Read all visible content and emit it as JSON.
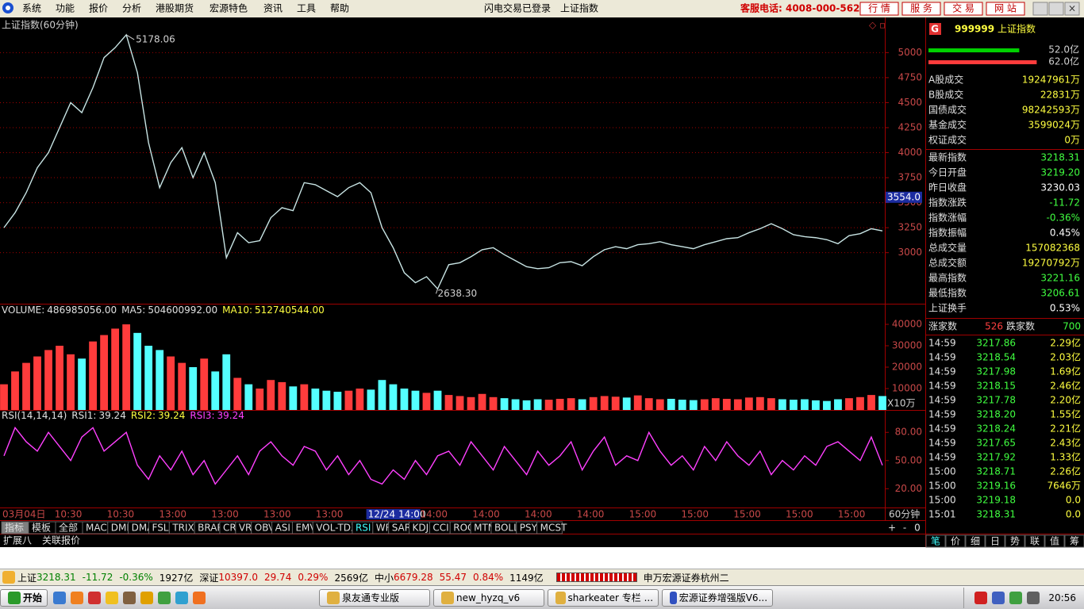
{
  "menu": [
    "系统",
    "功能",
    "报价",
    "分析",
    "港股期货",
    "宏源特色",
    "资讯",
    "工具",
    "帮助"
  ],
  "login_status": "闪电交易已登录",
  "current_name": "上证指数",
  "hotline": "客服电话: 4008-000-562",
  "top_buttons": [
    "行 情",
    "服 务",
    "交 易",
    "网 站"
  ],
  "chart_data": [
    {
      "type": "line",
      "title": "上证指数(60分钟)",
      "color": "#c8e4e4",
      "grid": true,
      "values": [
        3250,
        3400,
        3600,
        3850,
        4000,
        4250,
        4500,
        4400,
        4650,
        4950,
        5050,
        5178.06,
        4800,
        4100,
        3650,
        3900,
        4050,
        3750,
        4000,
        3700,
        2950,
        3200,
        3100,
        3120,
        3350,
        3450,
        3420,
        3700,
        3680,
        3620,
        3560,
        3650,
        3700,
        3600,
        3250,
        3050,
        2800,
        2700,
        2760,
        2638.3,
        2880,
        2900,
        2960,
        3030,
        3050,
        2980,
        2920,
        2860,
        2840,
        2850,
        2900,
        2910,
        2870,
        2960,
        3030,
        3060,
        3040,
        3080,
        3090,
        3110,
        3080,
        3060,
        3040,
        3080,
        3110,
        3140,
        3150,
        3200,
        3240,
        3290,
        3240,
        3180,
        3160,
        3150,
        3130,
        3090,
        3170,
        3190,
        3240,
        3218
      ],
      "ylim": [
        2490,
        5320
      ],
      "yticks": [
        3000,
        3250,
        3500,
        3750,
        4000,
        4250,
        4500,
        4750,
        5000
      ],
      "annotations": [
        "5178.06",
        "2638.30"
      ],
      "cursor_tick": {
        "value": 3554,
        "label": "3554.0"
      }
    },
    {
      "type": "bar",
      "up_color": "#ff3c3c",
      "down_color": "#54ffff",
      "grid": false,
      "legend": [
        {
          "name": "VOLUME:",
          "value": "486985056.00",
          "color": "#e0e0e0"
        },
        {
          "name": "MA5:",
          "value": "504600992.00",
          "color": "#e0e0e0"
        },
        {
          "name": "MA10:",
          "value": "512740544.00",
          "color": "#ffff40"
        }
      ],
      "values": [
        12000,
        18000,
        22000,
        25000,
        28000,
        30000,
        26000,
        24000,
        32000,
        35000,
        38000,
        40000,
        36000,
        30000,
        28000,
        25000,
        22000,
        20000,
        24000,
        18000,
        26000,
        15000,
        12000,
        10000,
        14000,
        13000,
        11000,
        12000,
        10000,
        9000,
        8500,
        9000,
        10000,
        9500,
        14000,
        12000,
        10000,
        9000,
        8000,
        9000,
        7000,
        6500,
        6000,
        7500,
        6000,
        5500,
        5000,
        4500,
        5000,
        4800,
        5200,
        5500,
        5000,
        6000,
        6500,
        6200,
        5800,
        6800,
        5500,
        5000,
        5200,
        4800,
        4600,
        5000,
        5500,
        5200,
        5000,
        5800,
        6000,
        5500,
        5000,
        4800,
        5000,
        4500,
        4200,
        5000,
        5500,
        6000,
        7000,
        6500
      ],
      "ylim": [
        0,
        48900
      ],
      "yticks": [
        10000,
        20000,
        30000,
        40000
      ],
      "unit": "X10万"
    },
    {
      "type": "line",
      "color": "#ff40ff",
      "grid": false,
      "legend": [
        {
          "name": "RSI(14,14,14)",
          "color": "#e0e0e0"
        },
        {
          "name": "RSI1:",
          "value": 39.24,
          "color": "#e0e0e0"
        },
        {
          "name": "RSI2:",
          "value": 39.24,
          "color": "#ffff40"
        },
        {
          "name": "RSI3:",
          "value": 39.24,
          "color": "#ff40ff"
        }
      ],
      "values": [
        55,
        85,
        70,
        60,
        80,
        65,
        50,
        75,
        85,
        60,
        70,
        80,
        45,
        30,
        55,
        40,
        60,
        35,
        50,
        25,
        40,
        55,
        35,
        60,
        70,
        55,
        45,
        65,
        60,
        40,
        55,
        35,
        50,
        30,
        25,
        40,
        30,
        50,
        35,
        55,
        60,
        45,
        70,
        55,
        40,
        65,
        50,
        35,
        60,
        45,
        55,
        70,
        40,
        60,
        75,
        45,
        55,
        50,
        80,
        60,
        45,
        55,
        40,
        65,
        50,
        70,
        55,
        45,
        60,
        35,
        50,
        40,
        55,
        45,
        65,
        70,
        60,
        50,
        75,
        45
      ],
      "ylim": [
        0,
        103
      ],
      "yticks": [
        {
          "value": 20,
          "label": "20.00"
        },
        {
          "value": 50,
          "label": "50.00"
        },
        {
          "value": 80,
          "label": "80.00"
        }
      ]
    }
  ],
  "x_labels": [
    "03月04日",
    "10:30",
    "10:30",
    "13:00",
    "13:00",
    "13:00",
    "13:00",
    "12/24 14:00",
    "14:00",
    "14:00",
    "14:00",
    "14:00",
    "15:00",
    "15:00",
    "15:00",
    "15:00",
    "15:00"
  ],
  "period": "60分钟",
  "indicator_tabs": [
    "指标",
    "模板",
    "全部",
    "MACD",
    "DMI",
    "DMA",
    "FSL",
    "TRIX",
    "BRAR",
    "CR",
    "VR",
    "OBV",
    "ASI",
    "EMV",
    "VOL-TDX",
    "RSI",
    "WR",
    "SAR",
    "KDJ",
    "CCI",
    "ROC",
    "MTM",
    "BOLL",
    "PSY",
    "MCST"
  ],
  "zoom_buttons": [
    "+",
    "-",
    "0"
  ],
  "extra_tabs": [
    "扩展八",
    "关联报价"
  ],
  "quote_panel": {
    "badge": "G",
    "code": "999999",
    "name": "上证指数",
    "flows": [
      {
        "value": 52,
        "label": "52.0亿",
        "color": "#00d000"
      },
      {
        "value": 62,
        "label": "62.0亿",
        "color": "#ff3c3c"
      }
    ],
    "turnover": [
      [
        "A股成交",
        "19247961万"
      ],
      [
        "B股成交",
        "22831万"
      ],
      [
        "国债成交",
        "98242593万"
      ],
      [
        "基金成交",
        "3599024万"
      ],
      [
        "权证成交",
        "0万"
      ]
    ],
    "stats": [
      {
        "label": "最新指数",
        "value": "3218.31",
        "color": "#40ff40"
      },
      {
        "label": "今日开盘",
        "value": "3219.20",
        "color": "#40ff40"
      },
      {
        "label": "昨日收盘",
        "value": "3230.03",
        "color": "#ffffff"
      },
      {
        "label": "指数涨跌",
        "value": "-11.72",
        "color": "#40ff40"
      },
      {
        "label": "指数涨幅",
        "value": "-0.36%",
        "color": "#40ff40"
      },
      {
        "label": "指数振幅",
        "value": "0.45%",
        "color": "#ffffff"
      },
      {
        "label": "总成交量",
        "value": "157082368",
        "color": "#ffff40"
      },
      {
        "label": "总成交额",
        "value": "19270792万",
        "color": "#ffff40"
      },
      {
        "label": "最高指数",
        "value": "3221.16",
        "color": "#40ff40"
      },
      {
        "label": "最低指数",
        "value": "3206.61",
        "color": "#40ff40"
      },
      {
        "label": "上证换手",
        "value": "0.53%",
        "color": "#ffffff"
      }
    ],
    "up_label": "涨家数",
    "up_count": 526,
    "down_label": "跌家数",
    "down_count": 700,
    "ticks": [
      [
        "14:59",
        "3217.86",
        "2.29亿"
      ],
      [
        "14:59",
        "3218.54",
        "2.03亿"
      ],
      [
        "14:59",
        "3217.98",
        "1.69亿"
      ],
      [
        "14:59",
        "3218.15",
        "2.46亿"
      ],
      [
        "14:59",
        "3217.78",
        "2.20亿"
      ],
      [
        "14:59",
        "3218.20",
        "1.55亿"
      ],
      [
        "14:59",
        "3218.24",
        "2.21亿"
      ],
      [
        "14:59",
        "3217.65",
        "2.43亿"
      ],
      [
        "14:59",
        "3217.92",
        "1.33亿"
      ],
      [
        "15:00",
        "3218.71",
        "2.26亿"
      ],
      [
        "15:00",
        "3219.16",
        "7646万"
      ],
      [
        "15:00",
        "3219.18",
        "0.0"
      ],
      [
        "15:01",
        "3218.31",
        "0.0"
      ]
    ],
    "tabs": [
      "笔",
      "价",
      "细",
      "日",
      "势",
      "联",
      "值",
      "筹"
    ]
  },
  "status_bar": [
    {
      "text": "上证",
      "color": "#000000"
    },
    {
      "text": "3218.31",
      "color": "#008000"
    },
    {
      "text": "-11.72",
      "color": "#008000"
    },
    {
      "text": "-0.36%",
      "color": "#008000"
    },
    {
      "text": "1927亿",
      "color": "#000000"
    },
    {
      "text": "深证",
      "color": "#000000"
    },
    {
      "text": "10397.0",
      "color": "#d00000"
    },
    {
      "text": "29.74",
      "color": "#d00000"
    },
    {
      "text": "0.29%",
      "color": "#d00000"
    },
    {
      "text": "2569亿",
      "color": "#000000"
    },
    {
      "text": "中小",
      "color": "#000000"
    },
    {
      "text": "6679.28",
      "color": "#d00000"
    },
    {
      "text": "55.47",
      "color": "#d00000"
    },
    {
      "text": "0.84%",
      "color": "#d00000"
    },
    {
      "text": "1149亿",
      "color": "#000000"
    }
  ],
  "broker": "申万宏源证券杭州二",
  "taskbar": {
    "start": "开始",
    "windows": [
      "泉友通专业版",
      "new_hyzq_v6",
      "sharkeater 专栏 ...",
      "宏源证券增强版V6..."
    ],
    "clock": "20:56"
  }
}
